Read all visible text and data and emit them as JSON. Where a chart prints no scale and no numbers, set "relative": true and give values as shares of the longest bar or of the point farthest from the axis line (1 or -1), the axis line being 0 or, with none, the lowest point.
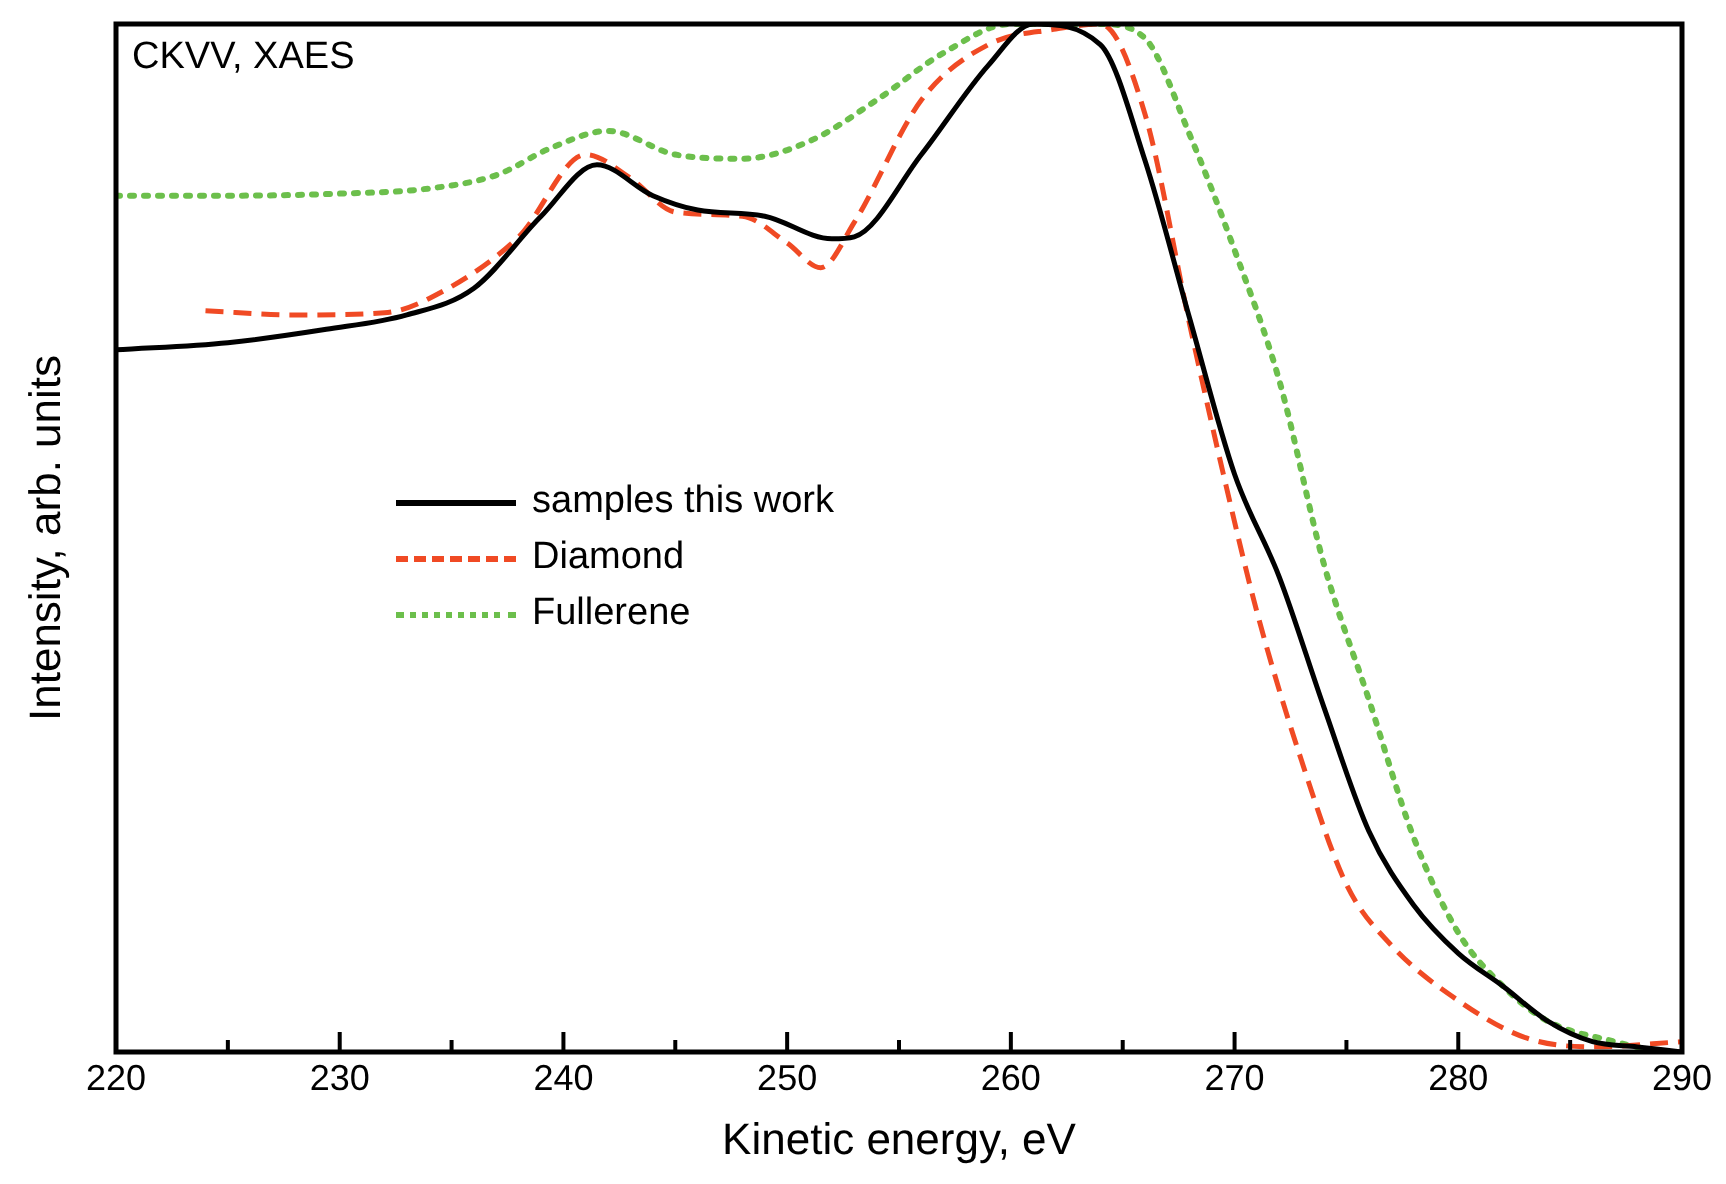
{
  "chart_data": {
    "type": "line",
    "xlabel": "Kinetic energy, eV",
    "ylabel": "Intensity, arb. units",
    "annotations": [
      "CKVV, XAES"
    ],
    "relative": true,
    "xlim": [
      220,
      290
    ],
    "xticks": [
      220,
      {
        "value": 225,
        "label": null
      },
      230,
      {
        "value": 235,
        "label": null
      },
      240,
      {
        "value": 245,
        "label": null
      },
      250,
      {
        "value": 255,
        "label": null
      },
      260,
      {
        "value": 265,
        "label": null
      },
      270,
      {
        "value": 275,
        "label": null
      },
      280,
      {
        "value": 285,
        "label": null
      },
      290
    ],
    "grid": false,
    "legend": "left",
    "marker": "none",
    "series": [
      {
        "name": "samples this work",
        "color": "#000000",
        "line_style": "solid",
        "x": [
          220,
          225,
          229.4,
          233,
          236,
          239,
          241.5,
          244,
          246,
          249,
          252,
          253,
          256,
          259,
          261,
          264,
          266,
          268,
          270,
          272,
          274,
          276,
          278,
          280,
          282,
          284,
          286,
          288,
          290
        ],
        "values": [
          0.683,
          0.69,
          0.703,
          0.717,
          0.743,
          0.813,
          0.863,
          0.833,
          0.819,
          0.813,
          0.791,
          0.793,
          0.873,
          0.96,
          1.0,
          0.98,
          0.867,
          0.713,
          0.562,
          0.462,
          0.335,
          0.215,
          0.143,
          0.096,
          0.064,
          0.03,
          0.01,
          0.005,
          0
        ]
      },
      {
        "name": "Diamond",
        "color": "#f04a24",
        "line_style": "dashed",
        "x": [
          224,
          228,
          232,
          234,
          238,
          241,
          243,
          245,
          248,
          250,
          251.5,
          253,
          256,
          259,
          262,
          264,
          266,
          268,
          269.5,
          271,
          273,
          275,
          277,
          280,
          283,
          286,
          290
        ],
        "values": [
          0.721,
          0.717,
          0.719,
          0.733,
          0.793,
          0.873,
          0.85,
          0.817,
          0.813,
          0.787,
          0.763,
          0.807,
          0.926,
          0.98,
          0.995,
          1.0,
          0.912,
          0.707,
          0.562,
          0.428,
          0.283,
          0.163,
          0.104,
          0.05,
          0.014,
          0.005,
          0.01
        ]
      },
      {
        "name": "Fullerene",
        "color": "#6cbf4c",
        "line_style": "dotted",
        "x": [
          220,
          225,
          230,
          234,
          237,
          239.5,
          242,
          245,
          248,
          251,
          254,
          257,
          260,
          264,
          266,
          268,
          270,
          272,
          274,
          276,
          278,
          280,
          282,
          284,
          287,
          289
        ],
        "values": [
          0.833,
          0.833,
          0.835,
          0.84,
          0.853,
          0.88,
          0.896,
          0.873,
          0.869,
          0.886,
          0.926,
          0.972,
          1.0,
          1.0,
          0.986,
          0.892,
          0.78,
          0.653,
          0.474,
          0.343,
          0.209,
          0.116,
          0.064,
          0.03,
          0.01,
          0
        ]
      }
    ]
  }
}
